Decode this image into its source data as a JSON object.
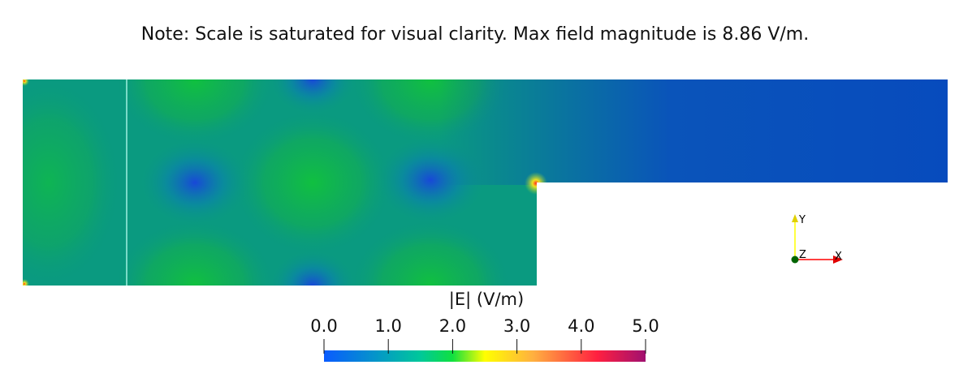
{
  "note": "Note: Scale is saturated for visual clarity. Max field magnitude is 8.86 V/m.",
  "chart_data": {
    "type": "heatmap",
    "title": "",
    "colorbar": {
      "title": "|E| (V/m)",
      "range": [
        0.0,
        5.0
      ],
      "ticks": [
        "0.0",
        "1.0",
        "2.0",
        "3.0",
        "4.0",
        "5.0"
      ],
      "colormap": [
        "#0a5bff",
        "#00c89a",
        "#10e040",
        "#ffff00",
        "#ffb040",
        "#ff2040",
        "#a01070"
      ]
    },
    "field_colors": {
      "low": "#0a4cc0",
      "mid": "#0a9a80",
      "high": "#14b848",
      "singularity": "#f0e020"
    }
  },
  "axes_triad": {
    "x": "X",
    "y": "Y",
    "z": "Z",
    "x_color": "#ff0000",
    "y_color": "#ffff00",
    "z_color": "#006400"
  }
}
